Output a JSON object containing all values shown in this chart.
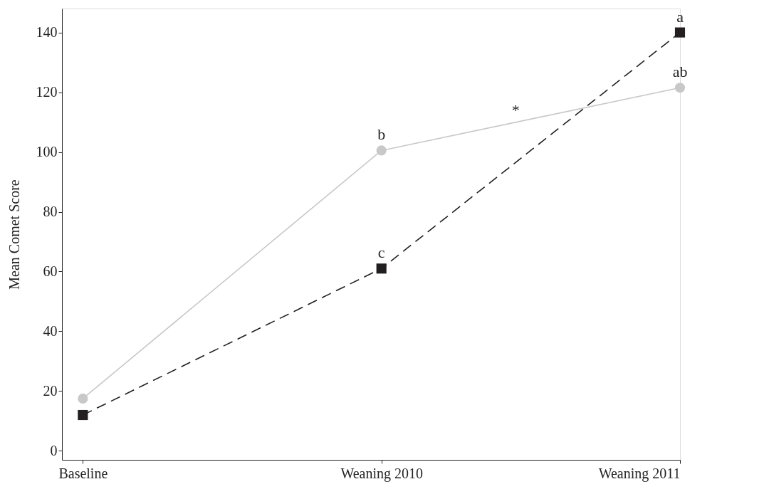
{
  "chart_data": {
    "type": "line",
    "ylabel": "Mean Comet Score",
    "categories": [
      "Baseline",
      "Weaning 2010",
      "Weaning 2011"
    ],
    "series": [
      {
        "color": "#c8c8c8",
        "values": [
          17.5,
          100.5,
          121.5
        ],
        "marker": "circle",
        "line_style": "solid"
      },
      {
        "color": "#231f20",
        "values": [
          12,
          61,
          140
        ],
        "marker": "square",
        "line_style": "dashed"
      }
    ],
    "ylim": [
      -3,
      148
    ],
    "yticks": [
      0,
      20,
      40,
      60,
      80,
      100,
      120,
      140
    ],
    "grid": false,
    "annotations": [
      {
        "text": "b",
        "x": "Weaning 2010",
        "y": 100.5
      },
      {
        "text": "c",
        "x": "Weaning 2010",
        "y": 61
      },
      {
        "text": "a",
        "x": "Weaning 2011",
        "y": 140
      },
      {
        "text": "ab",
        "x": "Weaning 2011",
        "y": 121.5
      },
      "*"
    ]
  }
}
